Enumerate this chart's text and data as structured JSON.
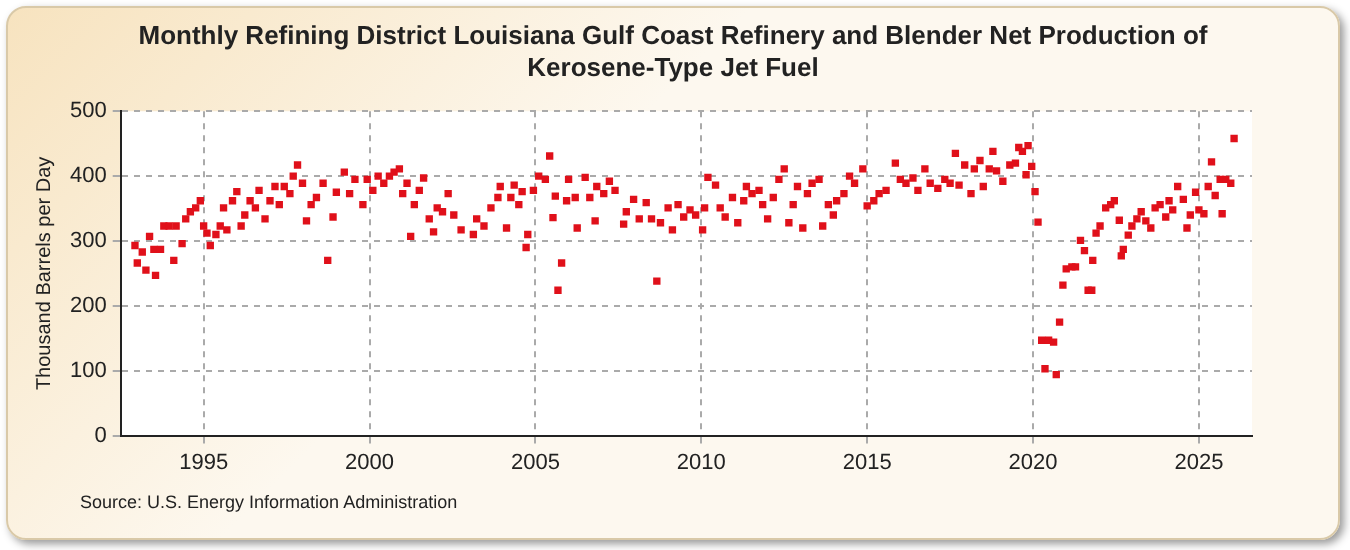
{
  "chart_data": {
    "type": "scatter",
    "title": "Monthly Refining District Louisiana Gulf Coast Refinery and Blender Net Production of Kerosene-Type Jet Fuel",
    "ylabel": "Thousand Barrels per Day",
    "annotations": [
      "Source: U.S. Energy Information Administration"
    ],
    "xlim": [
      1992.5,
      2026.6
    ],
    "xticks": [
      1995,
      2000,
      2005,
      2010,
      2015,
      2020,
      2025
    ],
    "ylim": [
      0,
      500
    ],
    "yticks": [
      0,
      100,
      200,
      300,
      400,
      500
    ],
    "grid": true,
    "legend": false,
    "marker": "square",
    "series": [
      {
        "color": "#e0101a",
        "x": [
          1992.93,
          1993.0,
          1993.15,
          1993.26,
          1993.37,
          1993.5,
          1993.55,
          1993.7,
          1993.8,
          1993.96,
          1994.1,
          1994.17,
          1994.35,
          1994.46,
          1994.6,
          1994.76,
          1994.9,
          1995.0,
          1995.1,
          1995.2,
          1995.37,
          1995.5,
          1995.6,
          1995.7,
          1995.87,
          1996.0,
          1996.13,
          1996.24,
          1996.4,
          1996.56,
          1996.67,
          1996.85,
          1997.0,
          1997.15,
          1997.28,
          1997.43,
          1997.6,
          1997.7,
          1997.83,
          1997.98,
          1998.1,
          1998.24,
          1998.4,
          1998.6,
          1998.74,
          1998.9,
          1999.0,
          1999.24,
          1999.4,
          1999.56,
          1999.8,
          1999.93,
          2000.1,
          2000.26,
          2000.43,
          2000.6,
          2000.74,
          2000.9,
          2001.0,
          2001.13,
          2001.24,
          2001.35,
          2001.5,
          2001.63,
          2001.8,
          2001.93,
          2002.04,
          2002.2,
          2002.37,
          2002.54,
          2002.76,
          2003.13,
          2003.23,
          2003.45,
          2003.66,
          2003.87,
          2003.94,
          2004.13,
          2004.26,
          2004.36,
          2004.5,
          2004.6,
          2004.72,
          2004.77,
          2004.94,
          2005.1,
          2005.3,
          2005.43,
          2005.53,
          2005.6,
          2005.68,
          2005.79,
          2005.94,
          2006.0,
          2006.2,
          2006.26,
          2006.5,
          2006.64,
          2006.8,
          2006.85,
          2007.06,
          2007.23,
          2007.4,
          2007.66,
          2007.74,
          2007.96,
          2008.13,
          2008.34,
          2008.5,
          2008.66,
          2008.77,
          2009.0,
          2009.13,
          2009.3,
          2009.47,
          2009.66,
          2009.83,
          2010.04,
          2010.1,
          2010.2,
          2010.43,
          2010.57,
          2010.72,
          2010.94,
          2011.1,
          2011.28,
          2011.36,
          2011.53,
          2011.74,
          2011.85,
          2012.0,
          2012.17,
          2012.34,
          2012.5,
          2012.64,
          2012.77,
          2012.9,
          2013.06,
          2013.2,
          2013.34,
          2013.55,
          2013.66,
          2013.83,
          2013.98,
          2014.08,
          2014.3,
          2014.47,
          2014.62,
          2014.87,
          2015.0,
          2015.2,
          2015.36,
          2015.57,
          2015.85,
          2016.0,
          2016.17,
          2016.38,
          2016.53,
          2016.74,
          2016.9,
          2017.13,
          2017.34,
          2017.5,
          2017.66,
          2017.77,
          2017.94,
          2018.13,
          2018.23,
          2018.4,
          2018.5,
          2018.68,
          2018.79,
          2018.9,
          2019.09,
          2019.3,
          2019.47,
          2019.57,
          2019.68,
          2019.79,
          2019.85,
          2019.96,
          2020.06,
          2020.15,
          2020.26,
          2020.36,
          2020.47,
          2020.62,
          2020.7,
          2020.8,
          2020.9,
          2021.0,
          2021.17,
          2021.28,
          2021.43,
          2021.55,
          2021.66,
          2021.77,
          2021.8,
          2021.9,
          2022.02,
          2022.19,
          2022.34,
          2022.45,
          2022.6,
          2022.66,
          2022.72,
          2022.87,
          2022.98,
          2023.13,
          2023.26,
          2023.4,
          2023.55,
          2023.68,
          2023.83,
          2024.0,
          2024.1,
          2024.21,
          2024.36,
          2024.53,
          2024.64,
          2024.74,
          2024.9,
          2025.0,
          2025.15,
          2025.28,
          2025.38,
          2025.49,
          2025.64,
          2025.7,
          2025.81,
          2025.96,
          2026.06
        ],
        "values": [
          293,
          266,
          283,
          255,
          307,
          287,
          247,
          287,
          323,
          323,
          270,
          323,
          296,
          334,
          345,
          351,
          362,
          323,
          312,
          293,
          310,
          323,
          351,
          317,
          362,
          376,
          323,
          340,
          362,
          351,
          378,
          334,
          362,
          384,
          356,
          384,
          373,
          400,
          417,
          389,
          331,
          356,
          367,
          389,
          270,
          337,
          375,
          406,
          373,
          395,
          356,
          395,
          378,
          400,
          389,
          400,
          406,
          411,
          373,
          389,
          307,
          356,
          378,
          397,
          334,
          314,
          351,
          345,
          373,
          340,
          317,
          310,
          334,
          323,
          351,
          367,
          384,
          320,
          367,
          386,
          356,
          376,
          290,
          310,
          378,
          400,
          395,
          431,
          336,
          369,
          224,
          266,
          362,
          395,
          367,
          320,
          398,
          367,
          331,
          384,
          373,
          392,
          378,
          326,
          345,
          364,
          334,
          359,
          334,
          238,
          328,
          351,
          317,
          356,
          337,
          348,
          340,
          317,
          351,
          398,
          386,
          351,
          337,
          367,
          328,
          362,
          384,
          373,
          378,
          356,
          334,
          367,
          395,
          411,
          328,
          356,
          384,
          320,
          373,
          389,
          395,
          323,
          356,
          340,
          362,
          373,
          400,
          389,
          411,
          354,
          362,
          373,
          378,
          420,
          395,
          389,
          397,
          378,
          411,
          389,
          381,
          395,
          389,
          435,
          386,
          417,
          373,
          411,
          424,
          384,
          411,
          438,
          408,
          392,
          417,
          420,
          444,
          438,
          402,
          447,
          415,
          376,
          329,
          147,
          103,
          147,
          144,
          94,
          175,
          232,
          257,
          260,
          260,
          301,
          285,
          224,
          224,
          270,
          312,
          323,
          351,
          356,
          362,
          332,
          277,
          287,
          309,
          323,
          334,
          345,
          331,
          320,
          351,
          356,
          337,
          362,
          348,
          384,
          364,
          320,
          340,
          375,
          348,
          342,
          384,
          422,
          370,
          395,
          342,
          395,
          389,
          458
        ]
      }
    ]
  }
}
